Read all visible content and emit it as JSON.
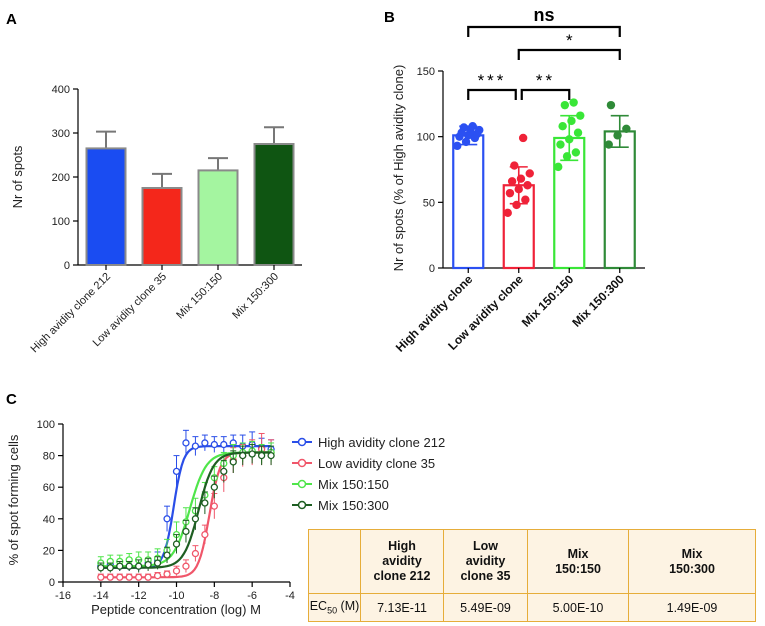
{
  "panel_a": {
    "letter": "A",
    "chart_data": {
      "type": "bar",
      "categories": [
        "High avidity clone 212",
        "Low avidity clone 35",
        "Mix 150:150",
        "Mix 150:300"
      ],
      "values": [
        265,
        175,
        215,
        275
      ],
      "errors": [
        38,
        32,
        28,
        38
      ],
      "colors": [
        "#1a4cf2",
        "#f4271b",
        "#a4f5a0",
        "#0f5512"
      ],
      "ylabel": "Nr of spots",
      "ylim": [
        0,
        400
      ],
      "yticks": [
        0,
        100,
        200,
        300,
        400
      ],
      "ytick_labels": [
        "0",
        "100",
        "200",
        "300",
        "400"
      ]
    }
  },
  "panel_b": {
    "letter": "B",
    "chart_data": {
      "type": "bar",
      "categories": [
        "High avidity clone",
        "Low avidity clone",
        "Mix 150:150",
        "Mix 150:300"
      ],
      "values": [
        101,
        63,
        99,
        104
      ],
      "errors": [
        7,
        14,
        17,
        12
      ],
      "colors": [
        "#2b50f2",
        "#ef2238",
        "#39e637",
        "#2f8a38"
      ],
      "points": [
        [
          93,
          96,
          99,
          100,
          101,
          102,
          103,
          104,
          105,
          107,
          108
        ],
        [
          42,
          48,
          52,
          57,
          60,
          63,
          66,
          68,
          72,
          78,
          99
        ],
        [
          77,
          85,
          88,
          94,
          98,
          103,
          108,
          112,
          116,
          124,
          126
        ],
        [
          94,
          101,
          106,
          124
        ]
      ],
      "ylabel": "Nr of spots (% of High avidity clone)",
      "ylim": [
        0,
        150
      ],
      "yticks": [
        0,
        50,
        100,
        150
      ],
      "ytick_labels": [
        "0",
        "50",
        "100",
        "150"
      ],
      "annotations": [
        {
          "text": "ns",
          "from": "High avidity clone",
          "to": "Mix 150:300"
        },
        {
          "text": "*",
          "from": "Low avidity clone",
          "to": "Mix 150:300"
        },
        {
          "text": "***",
          "from": "High avidity clone",
          "to": "Low avidity clone"
        },
        {
          "text": "**",
          "from": "Low avidity clone",
          "to": "Mix 150:150"
        }
      ]
    }
  },
  "panel_c": {
    "letter": "C",
    "chart_data": {
      "type": "line",
      "xlabel": "Peptide concentration (log) M",
      "ylabel": "% of spot forming cells",
      "xlim": [
        -16,
        -4
      ],
      "ylim": [
        0,
        100
      ],
      "xticks": [
        -16,
        -14,
        -12,
        -10,
        -8,
        -6,
        -4
      ],
      "xtick_labels": [
        "-16",
        "-14",
        "-12",
        "-10",
        "-8",
        "-6",
        "-4"
      ],
      "yticks": [
        0,
        20,
        40,
        60,
        80,
        100
      ],
      "ytick_labels": [
        "0",
        "20",
        "40",
        "60",
        "80",
        "100"
      ],
      "x": [
        -14,
        -13.5,
        -13,
        -12.5,
        -12,
        -11.5,
        -11,
        -10.5,
        -10,
        -9.5,
        -9,
        -8.5,
        -8,
        -7.5,
        -7,
        -6.5,
        -6,
        -5.5,
        -5
      ],
      "series": [
        {
          "name": "High avidity clone 212",
          "color": "#2a4ee8",
          "ec50_log": -10.15,
          "hill": 1.7,
          "bottom": 9,
          "top": 86,
          "values": [
            10,
            11,
            10,
            10,
            10,
            12,
            14,
            40,
            70,
            88,
            86,
            88,
            87,
            87,
            88,
            86,
            87,
            85,
            84
          ],
          "errors": [
            3,
            3,
            3,
            3,
            3,
            3,
            5,
            8,
            10,
            8,
            6,
            5,
            5,
            5,
            5,
            7,
            8,
            6,
            6
          ]
        },
        {
          "name": "Low avidity clone 35",
          "color": "#f0566a",
          "ec50_log": -8.26,
          "hill": 1.5,
          "bottom": 3,
          "top": 82,
          "values": [
            3,
            3,
            3,
            3,
            3,
            3,
            4,
            5,
            7,
            10,
            18,
            30,
            48,
            66,
            77,
            80,
            82,
            84,
            82
          ],
          "errors": [
            2,
            2,
            2,
            2,
            2,
            2,
            2,
            2,
            3,
            4,
            5,
            6,
            8,
            9,
            8,
            7,
            8,
            10,
            8
          ]
        },
        {
          "name": "Mix 150:150",
          "color": "#4fe54a",
          "ec50_log": -9.3,
          "hill": 1.0,
          "bottom": 10,
          "top": 82,
          "values": [
            12,
            13,
            13,
            14,
            14,
            14,
            15,
            20,
            30,
            38,
            45,
            55,
            66,
            75,
            80,
            82,
            83,
            81,
            82
          ],
          "errors": [
            4,
            4,
            4,
            4,
            5,
            5,
            6,
            7,
            8,
            9,
            8,
            8,
            7,
            7,
            7,
            6,
            6,
            6,
            6
          ]
        },
        {
          "name": "Mix 150:300",
          "color": "#1e5e22",
          "ec50_log": -8.83,
          "hill": 1.1,
          "bottom": 9,
          "top": 82,
          "values": [
            9,
            9,
            10,
            10,
            10,
            11,
            12,
            17,
            24,
            32,
            40,
            50,
            60,
            70,
            76,
            80,
            81,
            80,
            80
          ],
          "errors": [
            3,
            3,
            3,
            3,
            4,
            4,
            4,
            5,
            6,
            7,
            7,
            7,
            7,
            7,
            7,
            6,
            6,
            6,
            6
          ]
        }
      ]
    },
    "table": {
      "headers": [
        "",
        "High avidity clone 212",
        "Low avidity clone 35",
        "Mix 150:150",
        "Mix 150:300"
      ],
      "row_label": "EC",
      "row_label_sub": "50",
      "row_label_unit": " (M)",
      "values": [
        "7.13E-11",
        "5.49E-09",
        "5.00E-10",
        "1.49E-09"
      ]
    }
  }
}
